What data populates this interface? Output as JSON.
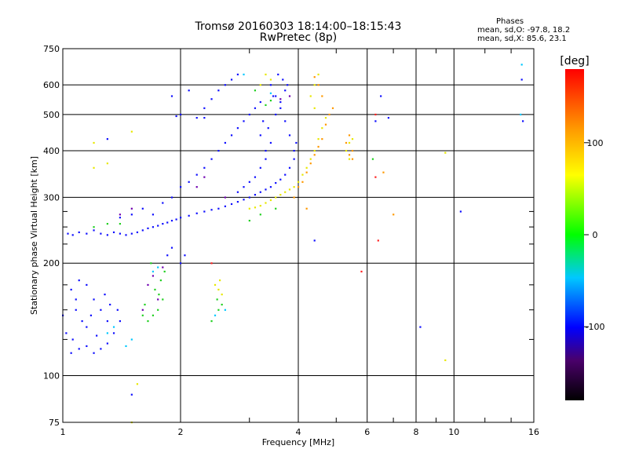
{
  "header": {
    "title": "Tromsø 20160303 18:14:00–18:15:43",
    "subtitle": "RwPretec (8p)"
  },
  "stats": {
    "heading": "Phases",
    "line_o": "mean, sd,O: -97.8, 18.2",
    "line_x": "mean, sd,X: 85.6, 23.1"
  },
  "colorbar": {
    "unit": "[deg]",
    "ticks": [
      "100",
      "0",
      "-100"
    ],
    "range": [
      -180,
      180
    ],
    "tick_values": [
      100,
      0,
      -100
    ]
  },
  "chart_data": {
    "type": "scatter",
    "xlabel": "Frequency [MHz]",
    "ylabel": "Stationary phase Virtual Height [km]",
    "xscale": "log",
    "yscale": "log",
    "xlim": [
      1,
      16
    ],
    "ylim": [
      75,
      750
    ],
    "xticks": [
      1,
      2,
      4,
      6,
      8,
      10,
      16
    ],
    "xtick_labels": [
      "1",
      "2",
      "4",
      "6",
      "8",
      "10",
      "16"
    ],
    "xgrid": [
      1,
      2,
      4,
      6,
      8,
      10,
      16
    ],
    "yticks": [
      75,
      100,
      200,
      300,
      400,
      500,
      600,
      750
    ],
    "ytick_labels": [
      "75",
      "100",
      "200",
      "300",
      "400",
      "500",
      "600",
      "750"
    ],
    "ygrid": [
      100,
      200,
      300,
      400,
      500,
      600
    ],
    "color_by": "phase [deg]",
    "series": [
      {
        "color": "blue",
        "points": [
          [
            1.03,
            240
          ],
          [
            1.06,
            238
          ],
          [
            1.1,
            242
          ],
          [
            1.15,
            240
          ],
          [
            1.2,
            245
          ],
          [
            1.25,
            240
          ],
          [
            1.3,
            238
          ],
          [
            1.35,
            242
          ],
          [
            1.4,
            240
          ],
          [
            1.45,
            238
          ],
          [
            1.5,
            240
          ],
          [
            1.55,
            242
          ],
          [
            1.6,
            245
          ],
          [
            1.65,
            248
          ],
          [
            1.7,
            250
          ],
          [
            1.75,
            252
          ],
          [
            1.8,
            255
          ],
          [
            1.85,
            257
          ],
          [
            1.9,
            260
          ],
          [
            1.95,
            262
          ],
          [
            2.0,
            265
          ],
          [
            2.1,
            268
          ],
          [
            2.2,
            272
          ],
          [
            2.3,
            275
          ],
          [
            2.4,
            278
          ],
          [
            2.5,
            280
          ],
          [
            2.6,
            284
          ],
          [
            2.7,
            288
          ],
          [
            2.8,
            292
          ],
          [
            2.9,
            296
          ],
          [
            3.0,
            300
          ],
          [
            3.1,
            305
          ],
          [
            3.2,
            310
          ],
          [
            3.3,
            315
          ],
          [
            3.4,
            320
          ],
          [
            3.5,
            328
          ],
          [
            3.6,
            335
          ],
          [
            3.7,
            345
          ],
          [
            3.8,
            360
          ],
          [
            3.9,
            380
          ],
          [
            3.95,
            420
          ],
          [
            1.7,
            270
          ],
          [
            1.8,
            290
          ],
          [
            1.9,
            300
          ],
          [
            2.0,
            320
          ],
          [
            2.1,
            330
          ],
          [
            2.2,
            345
          ],
          [
            2.3,
            360
          ],
          [
            2.4,
            380
          ],
          [
            2.5,
            400
          ],
          [
            2.6,
            420
          ],
          [
            2.7,
            440
          ],
          [
            2.8,
            460
          ],
          [
            2.9,
            480
          ],
          [
            3.0,
            500
          ],
          [
            3.1,
            520
          ],
          [
            3.2,
            540
          ],
          [
            1.5,
            270
          ],
          [
            1.6,
            280
          ],
          [
            1.4,
            265
          ],
          [
            2.2,
            490
          ],
          [
            2.0,
            500
          ],
          [
            1.95,
            495
          ],
          [
            2.3,
            520
          ],
          [
            2.4,
            550
          ],
          [
            2.5,
            580
          ],
          [
            2.6,
            600
          ],
          [
            2.7,
            620
          ],
          [
            2.8,
            640
          ],
          [
            3.4,
            600
          ],
          [
            3.5,
            560
          ],
          [
            3.6,
            520
          ],
          [
            3.7,
            480
          ],
          [
            3.8,
            440
          ],
          [
            3.9,
            400
          ],
          [
            3.3,
            380
          ],
          [
            3.2,
            360
          ],
          [
            3.1,
            340
          ],
          [
            3.0,
            330
          ],
          [
            2.9,
            320
          ],
          [
            2.8,
            310
          ],
          [
            1.1,
            180
          ],
          [
            1.05,
            170
          ],
          [
            1.15,
            175
          ],
          [
            1.2,
            160
          ],
          [
            1.25,
            150
          ],
          [
            1.08,
            150
          ],
          [
            1.12,
            140
          ],
          [
            1.18,
            145
          ],
          [
            1.3,
            140
          ],
          [
            1.02,
            130
          ],
          [
            1.06,
            125
          ],
          [
            1.1,
            118
          ],
          [
            1.15,
            120
          ],
          [
            1.2,
            115
          ],
          [
            1.25,
            118
          ],
          [
            1.3,
            122
          ],
          [
            1.05,
            115
          ],
          [
            1.35,
            130
          ],
          [
            1.4,
            140
          ],
          [
            1.15,
            135
          ],
          [
            1.22,
            128
          ],
          [
            1.08,
            160
          ],
          [
            1.28,
            165
          ],
          [
            1.32,
            155
          ],
          [
            1.0,
            145
          ],
          [
            1.38,
            150
          ],
          [
            2.0,
            200
          ],
          [
            2.05,
            210
          ],
          [
            1.9,
            220
          ],
          [
            1.85,
            210
          ],
          [
            3.3,
            400
          ],
          [
            3.4,
            420
          ],
          [
            3.2,
            440
          ],
          [
            3.35,
            460
          ],
          [
            3.25,
            480
          ],
          [
            3.5,
            500
          ],
          [
            3.6,
            540
          ],
          [
            3.7,
            580
          ],
          [
            3.75,
            600
          ],
          [
            3.65,
            620
          ],
          [
            3.55,
            640
          ],
          [
            3.45,
            560
          ],
          [
            4.4,
            230
          ],
          [
            6.3,
            480
          ],
          [
            6.5,
            560
          ],
          [
            6.8,
            490
          ],
          [
            8.2,
            135
          ],
          [
            15.0,
            480
          ],
          [
            14.9,
            620
          ],
          [
            1.3,
            430
          ],
          [
            1.5,
            89
          ],
          [
            10.4,
            275
          ],
          [
            2.3,
            490
          ],
          [
            1.9,
            560
          ],
          [
            2.1,
            580
          ]
        ]
      },
      {
        "color": "green",
        "points": [
          [
            1.65,
            140
          ],
          [
            1.7,
            145
          ],
          [
            1.75,
            150
          ],
          [
            1.8,
            160
          ],
          [
            1.72,
            170
          ],
          [
            1.78,
            180
          ],
          [
            1.82,
            190
          ],
          [
            1.68,
            200
          ],
          [
            2.5,
            150
          ],
          [
            2.55,
            155
          ],
          [
            2.48,
            160
          ],
          [
            1.6,
            145
          ],
          [
            1.62,
            155
          ],
          [
            1.76,
            165
          ],
          [
            3.0,
            260
          ],
          [
            3.2,
            270
          ],
          [
            3.5,
            280
          ],
          [
            3.3,
            530
          ],
          [
            3.4,
            545
          ],
          [
            6.2,
            380
          ],
          [
            1.4,
            255
          ],
          [
            2.4,
            140
          ],
          [
            1.2,
            250
          ],
          [
            1.3,
            255
          ],
          [
            3.1,
            580
          ]
        ]
      },
      {
        "color": "cyan",
        "points": [
          [
            1.3,
            130
          ],
          [
            1.35,
            135
          ],
          [
            1.7,
            190
          ],
          [
            1.75,
            195
          ],
          [
            2.6,
            150
          ],
          [
            2.45,
            145
          ],
          [
            1.45,
            120
          ],
          [
            1.5,
            125
          ],
          [
            14.9,
            680
          ],
          [
            14.8,
            500
          ],
          [
            3.4,
            570
          ],
          [
            2.9,
            640
          ]
        ]
      },
      {
        "color": "yellow",
        "points": [
          [
            3.0,
            280
          ],
          [
            3.1,
            282
          ],
          [
            3.2,
            285
          ],
          [
            3.3,
            290
          ],
          [
            3.4,
            295
          ],
          [
            3.5,
            300
          ],
          [
            3.6,
            305
          ],
          [
            3.7,
            310
          ],
          [
            3.8,
            315
          ],
          [
            3.9,
            320
          ],
          [
            4.0,
            330
          ],
          [
            4.1,
            345
          ],
          [
            4.2,
            360
          ],
          [
            4.3,
            380
          ],
          [
            4.4,
            400
          ],
          [
            4.5,
            430
          ],
          [
            4.6,
            460
          ],
          [
            4.7,
            490
          ],
          [
            4.4,
            520
          ],
          [
            4.3,
            560
          ],
          [
            4.4,
            600
          ],
          [
            4.5,
            640
          ],
          [
            2.55,
            165
          ],
          [
            2.5,
            170
          ],
          [
            2.45,
            175
          ],
          [
            2.52,
            180
          ],
          [
            3.2,
            600
          ],
          [
            3.3,
            640
          ],
          [
            3.4,
            620
          ],
          [
            5.4,
            420
          ],
          [
            5.5,
            430
          ],
          [
            5.3,
            400
          ],
          [
            5.4,
            380
          ],
          [
            1.5,
            450
          ],
          [
            1.2,
            420
          ],
          [
            9.5,
            110
          ],
          [
            1.5,
            75
          ],
          [
            1.55,
            95
          ],
          [
            1.3,
            370
          ],
          [
            1.2,
            360
          ],
          [
            9.5,
            395
          ]
        ]
      },
      {
        "color": "orange",
        "points": [
          [
            4.2,
            350
          ],
          [
            4.3,
            370
          ],
          [
            4.4,
            390
          ],
          [
            4.5,
            410
          ],
          [
            4.6,
            430
          ],
          [
            4.7,
            470
          ],
          [
            4.8,
            500
          ],
          [
            4.9,
            520
          ],
          [
            4.5,
            600
          ],
          [
            4.4,
            630
          ],
          [
            4.6,
            560
          ],
          [
            5.3,
            420
          ],
          [
            5.4,
            440
          ],
          [
            5.5,
            400
          ],
          [
            5.5,
            380
          ],
          [
            5.4,
            390
          ],
          [
            4.0,
            320
          ],
          [
            4.1,
            330
          ],
          [
            3.9,
            300
          ],
          [
            4.2,
            280
          ],
          [
            6.6,
            350
          ],
          [
            7.0,
            270
          ]
        ]
      },
      {
        "color": "red",
        "points": [
          [
            6.3,
            500
          ],
          [
            6.3,
            340
          ],
          [
            6.4,
            230
          ],
          [
            5.8,
            190
          ],
          [
            2.4,
            200
          ]
        ]
      },
      {
        "color": "purple",
        "points": [
          [
            1.65,
            175
          ],
          [
            1.7,
            185
          ],
          [
            1.75,
            160
          ],
          [
            1.8,
            195
          ],
          [
            1.6,
            150
          ],
          [
            1.4,
            270
          ],
          [
            1.5,
            280
          ],
          [
            2.3,
            340
          ],
          [
            2.6,
            300
          ],
          [
            2.2,
            320
          ],
          [
            3.8,
            560
          ],
          [
            3.6,
            550
          ]
        ]
      }
    ]
  }
}
